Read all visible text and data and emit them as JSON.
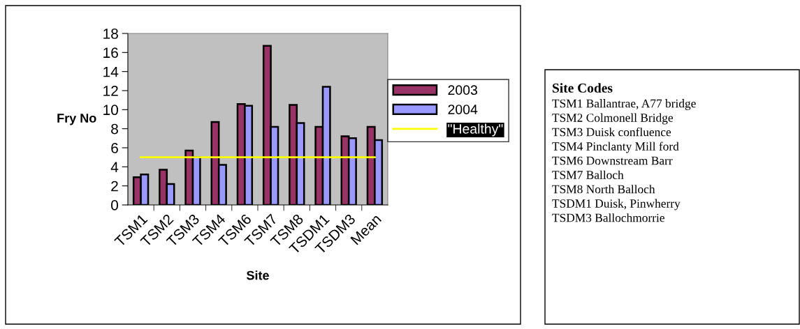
{
  "chart_data": {
    "type": "bar",
    "xlabel": "Site",
    "ylabel": "Fry No",
    "categories": [
      "TSM1",
      "TSM2",
      "TSM3",
      "TSM4",
      "TSM6",
      "TSM7",
      "TSM8",
      "TSDM1",
      "TSDM3",
      "Mean"
    ],
    "series": [
      {
        "name": "2003",
        "color": "#993366",
        "values": [
          2.9,
          3.7,
          5.7,
          8.7,
          10.6,
          16.7,
          10.5,
          8.2,
          7.2,
          8.2
        ]
      },
      {
        "name": "2004",
        "color": "#9999ff",
        "values": [
          3.2,
          2.2,
          5.0,
          4.2,
          10.4,
          8.2,
          8.6,
          12.4,
          7.0,
          6.8
        ]
      },
      {
        "name": "\"Healthy\"",
        "type": "line",
        "color": "#ffff00",
        "values": [
          5,
          5,
          5,
          5,
          5,
          5,
          5,
          5,
          5,
          5
        ]
      }
    ],
    "ylim": [
      0,
      18
    ],
    "yticks": [
      0,
      2,
      4,
      6,
      8,
      10,
      12,
      14,
      16,
      18
    ],
    "grid": false,
    "legend": "right",
    "marker": "none",
    "annotations": [
      "Site Codes",
      "TSM1 Ballantrae, A77 bridge",
      "TSM2 Colmonell Bridge",
      "TSM3 Duisk confluence",
      "TSM4 Pinclanty Mill ford",
      "TSM6 Downstream Barr",
      "TSM7 Balloch",
      "TSM8 North Balloch",
      "TSDM1 Duisk, Pinwherry",
      "TSDM3 Ballochmorrie"
    ]
  }
}
